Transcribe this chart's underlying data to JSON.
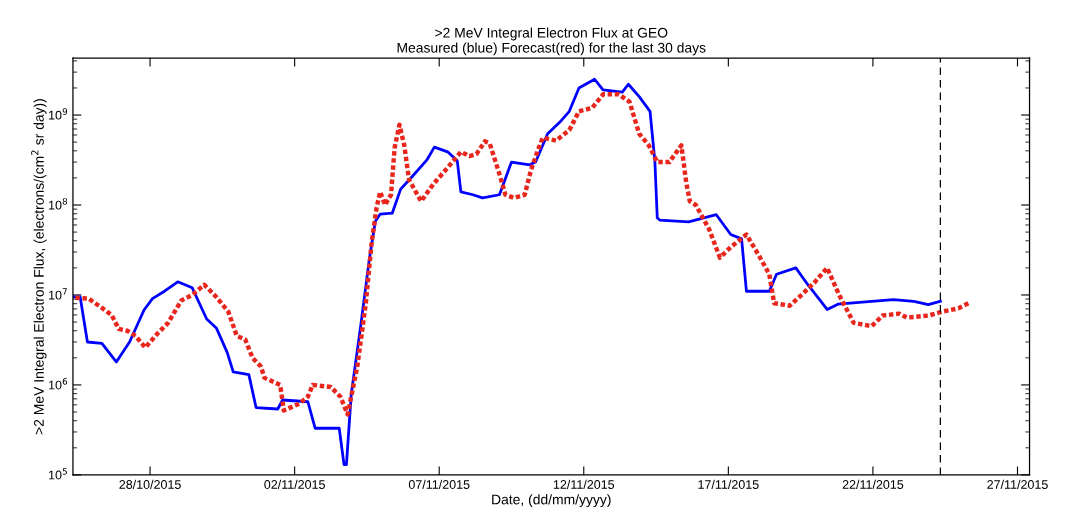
{
  "chart_data": {
    "type": "line",
    "title": ">2 MeV Integral Electron Flux at GEO",
    "subtitle": "Measured (blue) Forecast(red) for the last 30 days",
    "xlabel": "Date, (dd/mm/yyyy)",
    "ylabel": ">2 MeV Integral Electron Flux, (electrons/(cm$^{2}$ sr day))",
    "log": "y",
    "grid": false,
    "legend": false,
    "xlim": [
      "2015-10-25T08:00",
      "2015-11-27T10:00"
    ],
    "xticks": [
      {
        "value": "2015-10-28",
        "label": "28/10/2015"
      },
      {
        "value": "2015-11-02",
        "label": "02/11/2015"
      },
      {
        "value": "2015-11-07",
        "label": "07/11/2015"
      },
      {
        "value": "2015-11-12",
        "label": "12/11/2015"
      },
      {
        "value": "2015-11-17",
        "label": "17/11/2015"
      },
      {
        "value": "2015-11-22",
        "label": "22/11/2015"
      },
      {
        "value": "2015-11-27",
        "label": "27/11/2015"
      }
    ],
    "ylim": [
      100000,
      4300000000
    ],
    "yticks": [
      {
        "value": 100000,
        "label": "10$^{5}$"
      },
      {
        "value": 1000000,
        "label": "10$^{6}$"
      },
      {
        "value": 10000000,
        "label": "10$^{7}$"
      },
      {
        "value": 100000000,
        "label": "10$^{8}$"
      },
      {
        "value": 1000000000,
        "label": "10$^{9}$"
      }
    ],
    "ref_lines": [
      {
        "axis": "x",
        "value": "2015-11-24T08:00",
        "color": "#000000",
        "line_style": "dashed"
      }
    ],
    "series": [
      {
        "color": "#0000ff",
        "line_style": "solid",
        "x": [
          "2015-10-25T08:00",
          "2015-10-25T14:00",
          "2015-10-25T20:00",
          "2015-10-26T08:00",
          "2015-10-26T20:00",
          "2015-10-27T07:00",
          "2015-10-27T19:00",
          "2015-10-28T02:00",
          "2015-10-28T12:00",
          "2015-10-28T23:00",
          "2015-10-29T11:00",
          "2015-10-29T23:00",
          "2015-10-30T07:00",
          "2015-10-30T16:00",
          "2015-10-30T21:00",
          "2015-10-31T10:00",
          "2015-10-31T16:00",
          "2015-11-01T10:00",
          "2015-11-01T14:00",
          "2015-11-02T11:00",
          "2015-11-02T17:00",
          "2015-11-03T13:00",
          "2015-11-03T17:00",
          "2015-11-03T19:00",
          "2015-11-03T23:00",
          "2015-11-04T07:00",
          "2015-11-04T14:00",
          "2015-11-04T19:00",
          "2015-11-04T23:00",
          "2015-11-05T09:00",
          "2015-11-05T16:00",
          "2015-11-06T02:00",
          "2015-11-06T14:00",
          "2015-11-06T20:00",
          "2015-11-07T07:00",
          "2015-11-07T15:00",
          "2015-11-07T18:00",
          "2015-11-08T04:00",
          "2015-11-08T12:00",
          "2015-11-09T02:00",
          "2015-11-09T12:00",
          "2015-11-10T03:00",
          "2015-11-10T08:00",
          "2015-11-10T18:00",
          "2015-11-11T04:00",
          "2015-11-11T12:00",
          "2015-11-11T20:00",
          "2015-11-12T09:00",
          "2015-11-12T16:00",
          "2015-11-13T08:00",
          "2015-11-13T13:00",
          "2015-11-13T22:00",
          "2015-11-14T07:00",
          "2015-11-14T11:00",
          "2015-11-14T13:00",
          "2015-11-14T15:00",
          "2015-11-15T15:00",
          "2015-11-16T14:00",
          "2015-11-17T02:00",
          "2015-11-17T11:00",
          "2015-11-17T15:00",
          "2015-11-18T10:00",
          "2015-11-18T16:00",
          "2015-11-19T08:00",
          "2015-11-19T18:00",
          "2015-11-20T10:00",
          "2015-11-20T19:00",
          "2015-11-21T23:00",
          "2015-11-22T17:00",
          "2015-11-23T10:00",
          "2015-11-23T22:00",
          "2015-11-24T08:00"
        ],
        "values": [
          9500000.0,
          9500000.0,
          3000000.0,
          2900000.0,
          1800000.0,
          3000000.0,
          6800000.0,
          9100000.0,
          11000000.0,
          14000000.0,
          12000000.0,
          5400000.0,
          4300000.0,
          2300000.0,
          1400000.0,
          1300000.0,
          560000.0,
          540000.0,
          680000.0,
          650000.0,
          330000.0,
          330000.0,
          130000.0,
          130000.0,
          790000.0,
          4700000.0,
          25000000.0,
          66000000.0,
          79000000.0,
          81000000.0,
          150000000.0,
          210000000.0,
          320000000.0,
          440000000.0,
          390000000.0,
          310000000.0,
          140000000.0,
          130000000.0,
          120000000.0,
          130000000.0,
          300000000.0,
          280000000.0,
          300000000.0,
          620000000.0,
          830000000.0,
          1100000000.0,
          2000000000.0,
          2500000000.0,
          1900000000.0,
          1800000000.0,
          2200000000.0,
          1600000000.0,
          1100000000.0,
          310000000.0,
          72000000.0,
          68000000.0,
          65000000.0,
          78000000.0,
          47000000.0,
          42000000.0,
          11000000.0,
          11000000.0,
          17000000.0,
          20000000.0,
          13000000.0,
          6900000.0,
          7900000.0,
          8500000.0,
          8900000.0,
          8500000.0,
          7800000.0,
          8500000.0
        ]
      },
      {
        "color": "#e8261c",
        "line_style": "dotted",
        "x": [
          "2015-10-25T10:00",
          "2015-10-25T21:00",
          "2015-10-26T08:00",
          "2015-10-26T16:00",
          "2015-10-26T22:00",
          "2015-10-27T05:00",
          "2015-10-27T12:00",
          "2015-10-27T20:00",
          "2015-10-28T06:00",
          "2015-10-28T15:00",
          "2015-10-29T02:00",
          "2015-10-29T11:00",
          "2015-10-29T21:00",
          "2015-10-30T07:00",
          "2015-10-30T17:00",
          "2015-10-31T00:00",
          "2015-10-31T07:00",
          "2015-10-31T13:00",
          "2015-10-31T20:00",
          "2015-10-31T23:00",
          "2015-11-01T12:00",
          "2015-11-01T15:00",
          "2015-11-02T04:00",
          "2015-11-02T11:00",
          "2015-11-02T15:00",
          "2015-11-03T06:00",
          "2015-11-03T14:00",
          "2015-11-03T20:00",
          "2015-11-04T04:00",
          "2015-11-04T11:00",
          "2015-11-04T16:00",
          "2015-11-04T20:00",
          "2015-11-04T23:00",
          "2015-11-05T03:00",
          "2015-11-05T08:00",
          "2015-11-05T11:00",
          "2015-11-05T15:00",
          "2015-11-05T19:00",
          "2015-11-05T23:00",
          "2015-11-06T09:00",
          "2015-11-06T19:00",
          "2015-11-07T07:00",
          "2015-11-07T18:00",
          "2015-11-08T01:00",
          "2015-11-08T07:00",
          "2015-11-08T14:00",
          "2015-11-08T18:00",
          "2015-11-09T02:00",
          "2015-11-09T07:00",
          "2015-11-09T14:00",
          "2015-11-09T23:00",
          "2015-11-10T04:00",
          "2015-11-10T10:00",
          "2015-11-10T14:00",
          "2015-11-11T01:00",
          "2015-11-11T12:00",
          "2015-11-11T20:00",
          "2015-11-12T07:00",
          "2015-11-12T16:00",
          "2015-11-13T05:00",
          "2015-11-13T14:00",
          "2015-11-13T22:00",
          "2015-11-14T06:00",
          "2015-11-14T13:00",
          "2015-11-14T23:00",
          "2015-11-15T09:00",
          "2015-11-15T13:00",
          "2015-11-15T16:00",
          "2015-11-15T21:00",
          "2015-11-16T08:00",
          "2015-11-16T17:00",
          "2015-11-17T02:00",
          "2015-11-17T15:00",
          "2015-11-18T01:00",
          "2015-11-18T10:00",
          "2015-11-18T14:00",
          "2015-11-19T03:00",
          "2015-11-19T12:00",
          "2015-11-20T00:00",
          "2015-11-20T10:00",
          "2015-11-20T20:00",
          "2015-11-21T08:00",
          "2015-11-21T23:00",
          "2015-11-22T08:00",
          "2015-11-22T22:00",
          "2015-11-23T04:00",
          "2015-11-23T22:00",
          "2015-11-24T09:00",
          "2015-11-24T23:00",
          "2015-11-25T09:00"
        ],
        "values": [
          9300000.0,
          9100000.0,
          7200000.0,
          6000000.0,
          4200000.0,
          4000000.0,
          3500000.0,
          2600000.0,
          3700000.0,
          4900000.0,
          8700000.0,
          10000000.0,
          13000000.0,
          9500000.0,
          6500000.0,
          3500000.0,
          3200000.0,
          2000000.0,
          1600000.0,
          1200000.0,
          1000000.0,
          520000.0,
          620000.0,
          740000.0,
          1000000.0,
          950000.0,
          740000.0,
          470000.0,
          1600000.0,
          7900000.0,
          39000000.0,
          93000000.0,
          140000000.0,
          100000000.0,
          130000000.0,
          430000000.0,
          780000000.0,
          460000000.0,
          190000000.0,
          110000000.0,
          170000000.0,
          260000000.0,
          390000000.0,
          350000000.0,
          370000000.0,
          510000000.0,
          480000000.0,
          220000000.0,
          130000000.0,
          120000000.0,
          130000000.0,
          240000000.0,
          410000000.0,
          560000000.0,
          520000000.0,
          680000000.0,
          1100000000.0,
          1200000000.0,
          1700000000.0,
          1700000000.0,
          1400000000.0,
          620000000.0,
          460000000.0,
          300000000.0,
          300000000.0,
          460000000.0,
          180000000.0,
          110000000.0,
          100000000.0,
          54000000.0,
          26000000.0,
          34000000.0,
          47000000.0,
          28000000.0,
          17000000.0,
          8100000.0,
          7600000.0,
          9800000.0,
          14000000.0,
          20000000.0,
          10000000.0,
          4900000.0,
          4500000.0,
          5900000.0,
          6200000.0,
          5600000.0,
          5900000.0,
          6500000.0,
          7100000.0,
          8300000.0
        ]
      }
    ]
  }
}
